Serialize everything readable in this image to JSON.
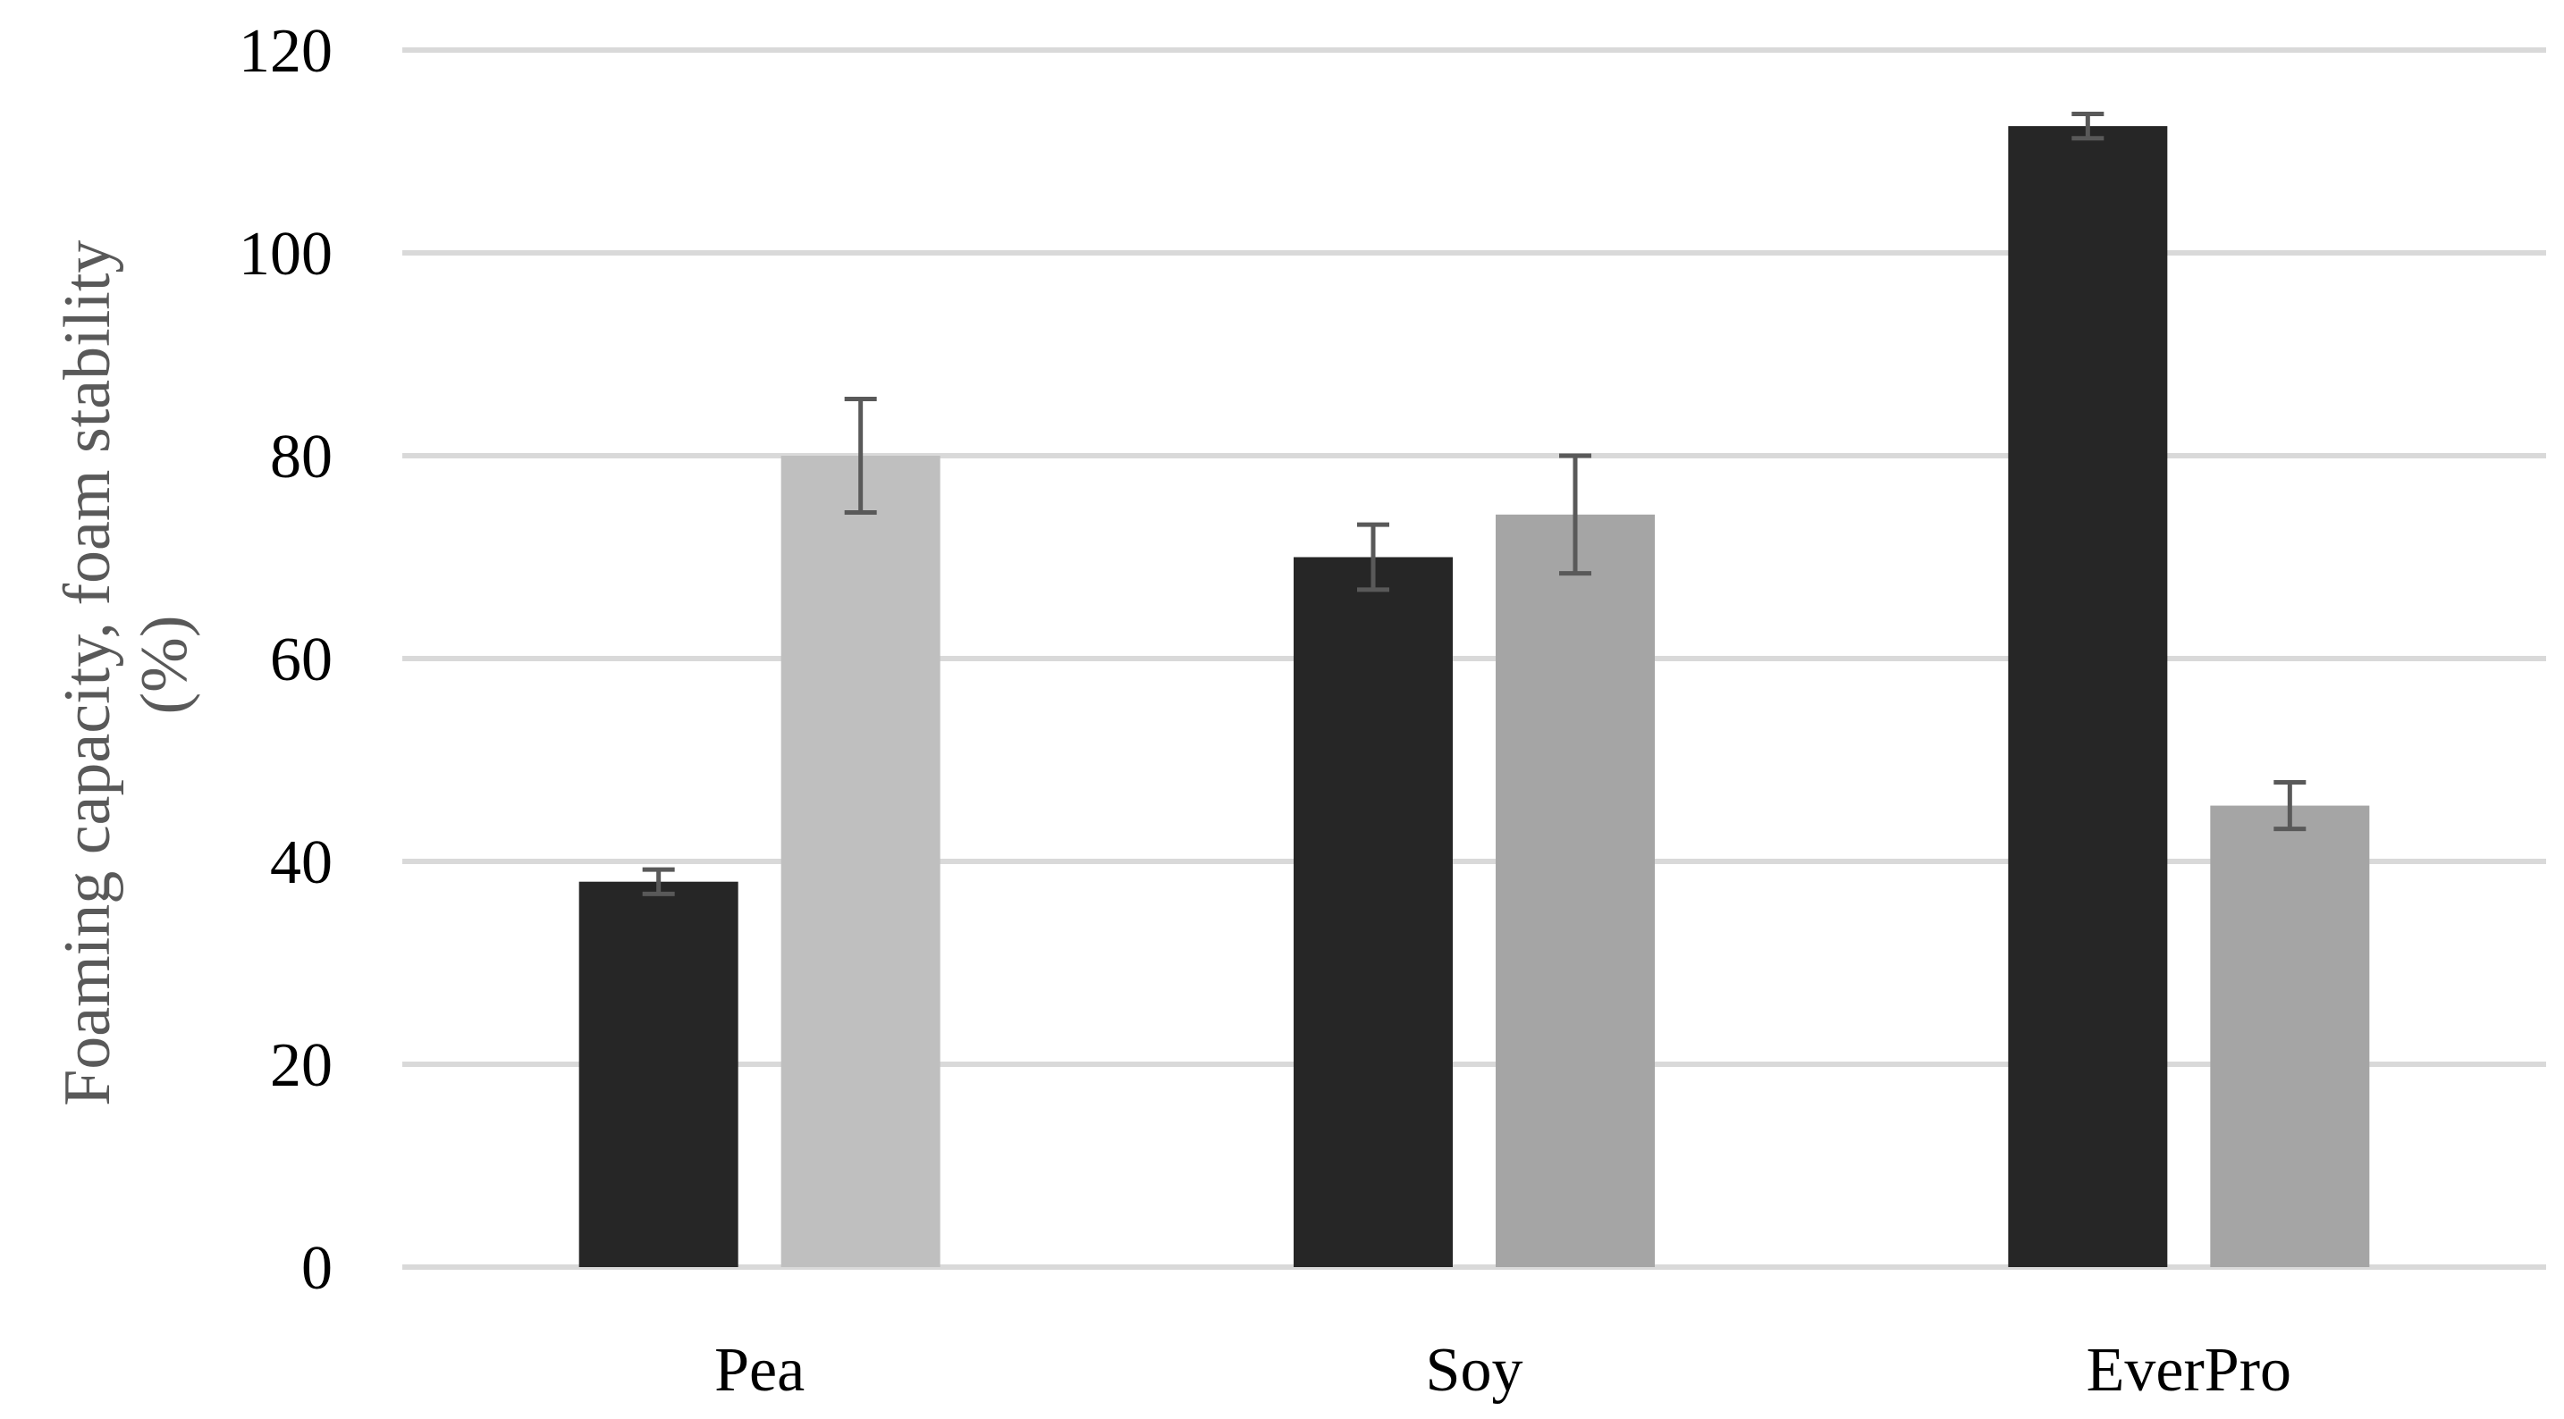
{
  "chart_data": {
    "type": "bar",
    "title": "",
    "xlabel": "",
    "ylabel_lines": [
      "Foaming capacity, foam stability",
      "(%)"
    ],
    "ylim": [
      0,
      120
    ],
    "yticks": [
      0,
      20,
      40,
      60,
      80,
      100,
      120
    ],
    "categories": [
      "Pea",
      "Soy",
      "EverPro"
    ],
    "grid": true,
    "legend": "none",
    "series": [
      {
        "color": "#262626",
        "values": [
          38,
          70,
          112.5
        ],
        "errors": [
          1.2,
          3.2,
          1.2
        ]
      },
      {
        "colors_by_category": [
          "#bfbfbf",
          "#a5a5a5",
          "#a5a5a5"
        ],
        "values": [
          80,
          74.2,
          45.5
        ],
        "errors": [
          5.6,
          5.8,
          2.3
        ]
      }
    ],
    "colors": {
      "gridline": "#d9d9d9",
      "error_bar": "#595959",
      "tick_label": "#000000",
      "axis_title": "#595959"
    }
  }
}
